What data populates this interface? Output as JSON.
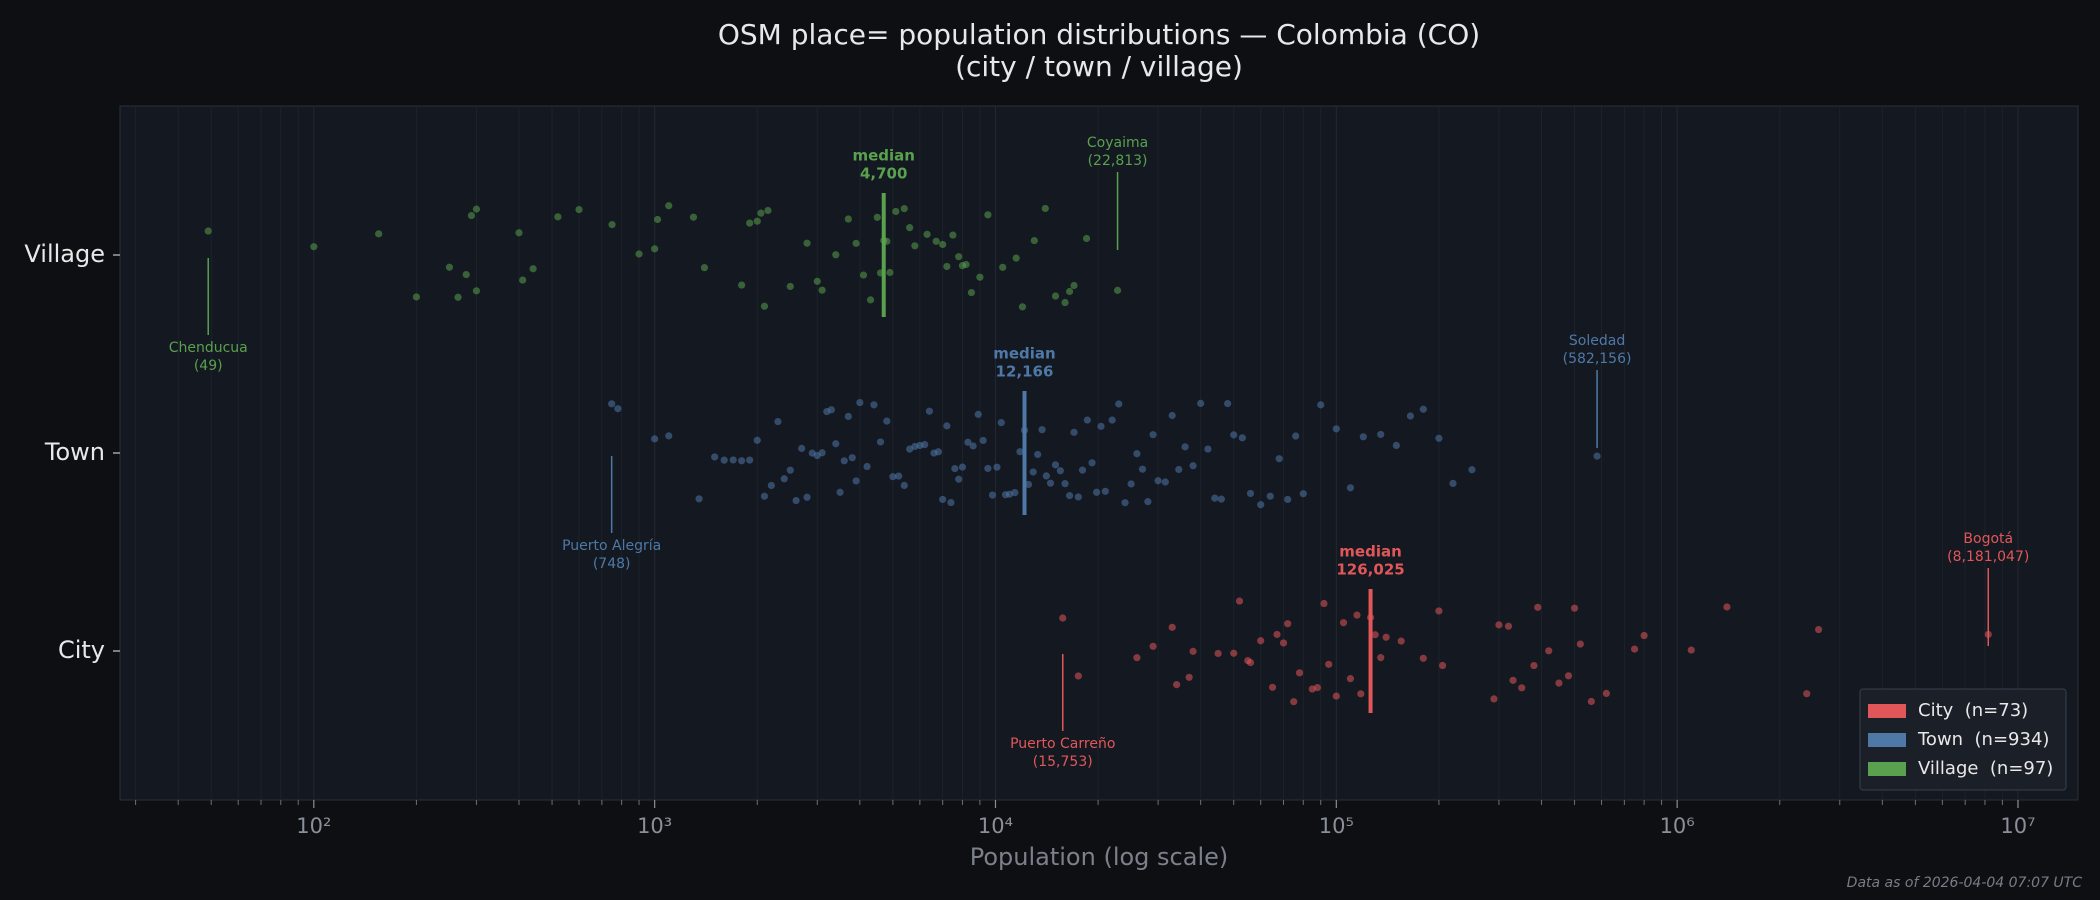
{
  "chart_data": {
    "type": "strip",
    "title": "OSM place= population distributions — Colombia (CO)",
    "subtitle": "(city / town / village)",
    "x_label": "Population (log scale)",
    "footnote": "Data as of 2026-04-04 07:07 UTC",
    "median_text": "median",
    "log_x": true,
    "grid": true,
    "legend_position": "lower right",
    "categories": [
      "City",
      "Town",
      "Village"
    ],
    "xlim": [
      27,
      15000000
    ],
    "xticks": [
      {
        "value": 100,
        "label": "10²"
      },
      {
        "value": 1000,
        "label": "10³"
      },
      {
        "value": 10000,
        "label": "10⁴"
      },
      {
        "value": 100000,
        "label": "10⁵"
      },
      {
        "value": 1000000,
        "label": "10⁶"
      },
      {
        "value": 10000000,
        "label": "10⁷"
      }
    ],
    "xticks_minor": [
      30,
      40,
      50,
      60,
      70,
      80,
      90,
      200,
      300,
      400,
      500,
      600,
      700,
      800,
      900,
      2000,
      3000,
      4000,
      5000,
      6000,
      7000,
      8000,
      9000,
      20000,
      30000,
      40000,
      50000,
      60000,
      70000,
      80000,
      90000,
      200000,
      300000,
      400000,
      500000,
      600000,
      700000,
      800000,
      900000,
      2000000,
      3000000,
      4000000,
      5000000,
      6000000,
      7000000,
      8000000,
      9000000
    ],
    "series": [
      {
        "name": "City  (n=73)",
        "color": "#e15759",
        "median": 126025,
        "median_label": "126,025",
        "min": {
          "text": "Puerto Carreño",
          "value": 15753,
          "value_label": "(15,753)"
        },
        "max": {
          "text": "Bogotá",
          "value": 8181047,
          "value_label": "(8,181,047)"
        },
        "values": [
          15753,
          17500,
          26000,
          29000,
          33000,
          34000,
          37000,
          38000,
          45000,
          50000,
          52000,
          55000,
          56000,
          60000,
          65000,
          67000,
          70000,
          72000,
          75000,
          78000,
          85000,
          88000,
          92000,
          95000,
          100000,
          105000,
          110000,
          115000,
          118000,
          126025,
          130000,
          135000,
          140000,
          155000,
          180000,
          200000,
          205000,
          290000,
          300000,
          320000,
          330000,
          350000,
          380000,
          390000,
          420000,
          450000,
          480000,
          500000,
          520000,
          560000,
          620000,
          750000,
          800000,
          1100000,
          1400000,
          2400000,
          2600000,
          8181047
        ]
      },
      {
        "name": "Town  (n=934)",
        "color": "#4e79a7",
        "median": 12166,
        "median_label": "12,166",
        "min": {
          "text": "Puerto Alegría",
          "value": 748,
          "value_label": "(748)"
        },
        "max": {
          "text": "Soledad",
          "value": 582156,
          "value_label": "(582,156)"
        },
        "values": [
          748,
          780,
          1000,
          1100,
          1350,
          1500,
          1600,
          1700,
          1800,
          1900,
          2000,
          2100,
          2200,
          2300,
          2400,
          2500,
          2600,
          2700,
          2800,
          2900,
          3000,
          3100,
          3200,
          3300,
          3400,
          3500,
          3600,
          3700,
          3800,
          3900,
          4000,
          4200,
          4400,
          4600,
          4800,
          5000,
          5200,
          5400,
          5600,
          5800,
          6000,
          6200,
          6400,
          6600,
          6800,
          7000,
          7200,
          7400,
          7600,
          7800,
          8000,
          8300,
          8600,
          8900,
          9200,
          9500,
          9800,
          10100,
          10400,
          10700,
          11000,
          11400,
          11800,
          12166,
          12500,
          12900,
          13300,
          13700,
          14100,
          14500,
          15000,
          15500,
          16000,
          16500,
          17000,
          17500,
          18000,
          18600,
          19200,
          19800,
          20400,
          21000,
          22000,
          23000,
          24000,
          25000,
          26000,
          27000,
          28000,
          29000,
          30000,
          31500,
          33000,
          34500,
          36000,
          38000,
          40000,
          42000,
          44000,
          46000,
          48000,
          50000,
          53000,
          56000,
          60000,
          64000,
          68000,
          72000,
          76000,
          80000,
          90000,
          100000,
          110000,
          120000,
          135000,
          150000,
          165000,
          180000,
          200000,
          220000,
          250000,
          582156
        ]
      },
      {
        "name": "Village  (n=97)",
        "color": "#59a14f",
        "median": 4700,
        "median_label": "4,700",
        "min": {
          "text": "Chenducua",
          "value": 49,
          "value_label": "(49)"
        },
        "max": {
          "text": "Coyaima",
          "value": 22813,
          "value_label": "(22,813)"
        },
        "values": [
          49,
          100,
          155,
          200,
          250,
          265,
          280,
          290,
          300,
          300,
          400,
          410,
          440,
          520,
          600,
          750,
          900,
          1000,
          1020,
          1100,
          1300,
          1400,
          1800,
          1900,
          2000,
          2050,
          2100,
          2150,
          2500,
          2800,
          3000,
          3100,
          3400,
          3700,
          3900,
          4100,
          4300,
          4500,
          4600,
          4700,
          4800,
          4900,
          5100,
          5400,
          5600,
          5800,
          6300,
          6700,
          7000,
          7200,
          7500,
          7800,
          8000,
          8200,
          8500,
          9000,
          9500,
          10500,
          11500,
          12000,
          13000,
          14000,
          15000,
          16000,
          16500,
          17000,
          18500,
          22813
        ]
      }
    ]
  }
}
